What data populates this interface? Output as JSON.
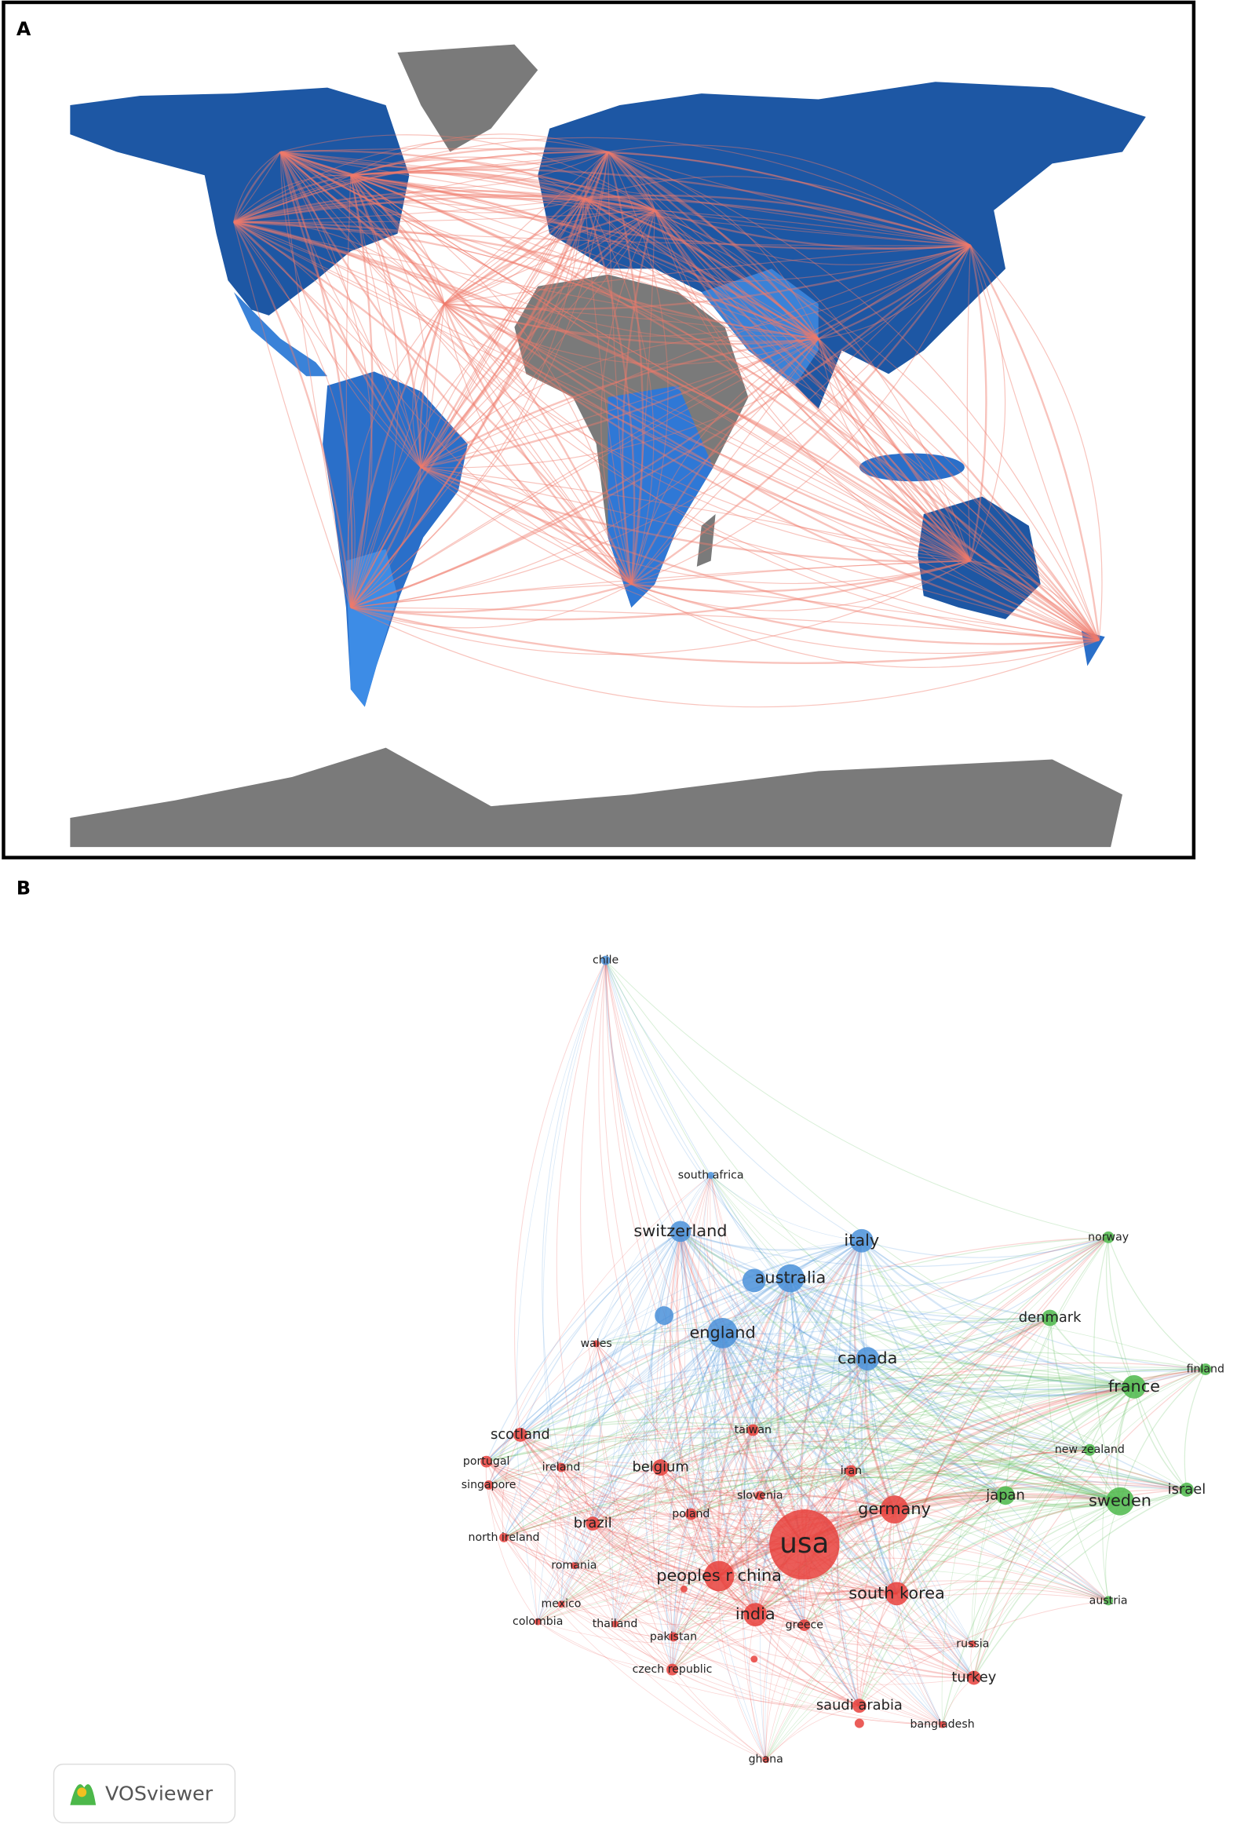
{
  "panels": {
    "a": {
      "label": "A"
    },
    "b": {
      "label": "B"
    }
  },
  "network": {
    "clusters": [
      {
        "color": "#4a90d9",
        "nodes": [
          "chile",
          "south africa",
          "switzerland",
          "italy",
          "australia",
          "england",
          "canada"
        ]
      },
      {
        "color": "#4cb84a",
        "nodes": [
          "norway",
          "denmark",
          "finland",
          "france",
          "new zealand",
          "japan",
          "sweden",
          "israel",
          "austria"
        ]
      },
      {
        "color": "#e8413c",
        "nodes": [
          "wales",
          "scotland",
          "taiwan",
          "portugal",
          "ireland",
          "belgium",
          "iran",
          "singapore",
          "slovenia",
          "germany",
          "poland",
          "brazil",
          "usa",
          "north ireland",
          "romania",
          "peoples r china",
          "south korea",
          "mexico",
          "india",
          "colombia",
          "thailand",
          "greece",
          "pakistan",
          "russia",
          "czech republic",
          "turkey",
          "saudi arabia",
          "bangladesh",
          "ghana"
        ]
      }
    ],
    "logo": "VOSviewer"
  }
}
